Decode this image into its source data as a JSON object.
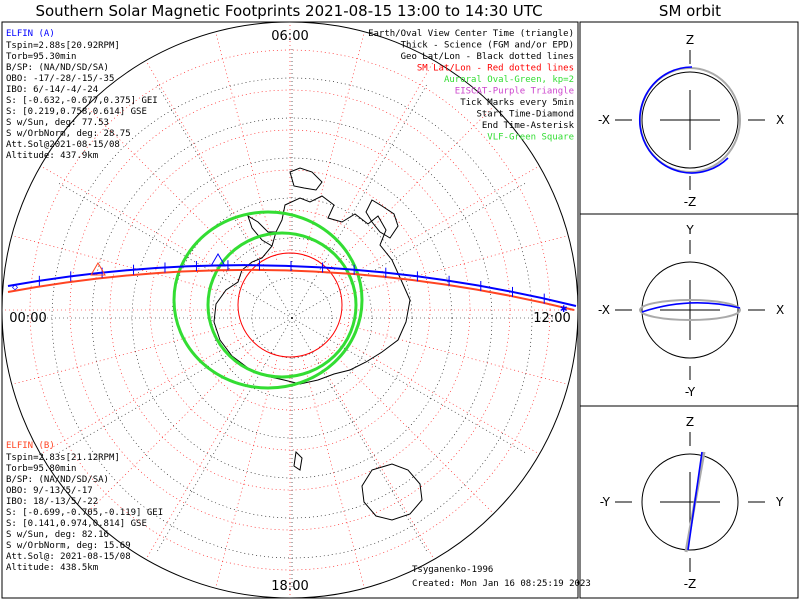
{
  "title": "Southern Solar Magnetic Footprints 2021-08-15 13:00 to 14:30 UTC",
  "sm_title": "SM orbit",
  "clock_labels": {
    "top": "06:00",
    "left": "00:00",
    "right": "12:00",
    "bottom": "18:00"
  },
  "elfin_a": {
    "name": "ELFIN (A)",
    "lines": [
      "Tspin=2.88s[20.92RPM]",
      "Torb=95.30min",
      "B/SP: (NA/ND/SD/SA)",
      "OBO: -17/-28/-15/-35",
      "IBO: 6/-14/-4/-24",
      "S: [-0.632,-0.677,0.375] GEI",
      "S: [0.219,0.758,0.614] GSE",
      "S w/Sun, deg: 77.53",
      "S w/OrbNorm, deg: 28.75",
      "Att.Sol@2021-08-15/08",
      "Altitude: 437.9km"
    ]
  },
  "elfin_b": {
    "name": "ELFIN (B)",
    "lines": [
      "Tspin=2.83s[21.12RPM]",
      "Torb=95.80min",
      "B/SP: (NA/ND/SD/SA)",
      "OBO: 9/-13/5/-17",
      "IBO: 18/-13/5/-22",
      "S: [-0.699,-0.705,-0.119] GEI",
      "S: [0.141,0.974,0.814] GSE",
      "S w/Sun, deg: 82.16",
      "S w/OrbNorm, deg: 15.69",
      "Att.Sol@: 2021-08-15/08",
      "Altitude: 438.5km"
    ]
  },
  "legend": [
    {
      "text": "Earth/Oval View Center Time (triangle)",
      "color": "#000000"
    },
    {
      "text": "Thick - Science (FGM and/or EPD)",
      "color": "#000000"
    },
    {
      "text": "Geo Lat/Lon - Black dotted lines",
      "color": "#000000"
    },
    {
      "text": "SM Lat/Lon - Red dotted lines",
      "color": "#ff0000"
    },
    {
      "text": "Auroral Oval-Green, kp=2",
      "color": "#33dd33"
    },
    {
      "text": "EISCAT-Purple Triangle",
      "color": "#cc44cc"
    },
    {
      "text": "Tick Marks every 5min",
      "color": "#000000"
    },
    {
      "text": "Start Time-Diamond",
      "color": "#000000"
    },
    {
      "text": "End Time-Asterisk",
      "color": "#000000"
    },
    {
      "text": "VLF-Green Square",
      "color": "#33dd33"
    }
  ],
  "footer": {
    "model": "Tsyganenko-1996",
    "created": "Created: Mon Jan 16 08:25:19 2023"
  },
  "panels": [
    {
      "top": "Z",
      "bottom": "-Z",
      "left": "-X",
      "right": "X"
    },
    {
      "top": "Y",
      "bottom": "-Y",
      "left": "-X",
      "right": "X"
    },
    {
      "top": "Z",
      "bottom": "-Z",
      "left": "-Y",
      "right": "Y"
    }
  ],
  "colors": {
    "elfin_a": "#0000ff",
    "elfin_b": "#ff4422",
    "sm_grid": "#ff0000",
    "oval": "#33dd33"
  }
}
